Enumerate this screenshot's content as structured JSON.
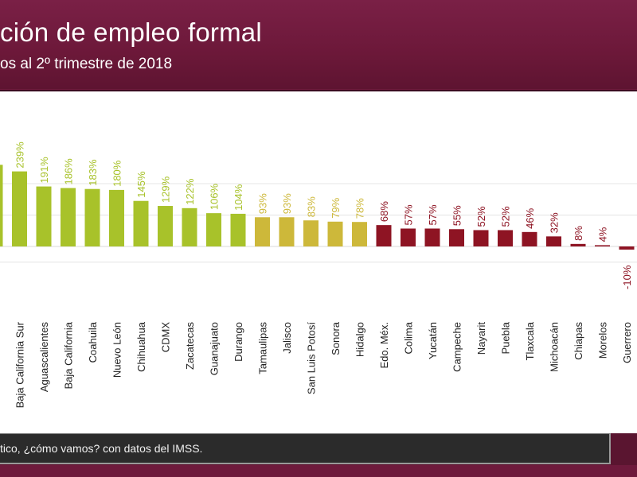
{
  "header": {
    "title": "ción de empleo formal",
    "subtitle": "os al 2º trimestre de 2018"
  },
  "footer": {
    "source": "tico, ¿cómo vamos? con datos del IMSS."
  },
  "colors": {
    "high": "#a8c22a",
    "mid": "#cdb83a",
    "low": "#8e1423",
    "header": "#6e1a3c"
  },
  "chart_data": {
    "type": "bar",
    "categories": [
      "",
      "Baja California Sur",
      "Aguascalientes",
      "Baja California",
      "Coahuila",
      "Nuevo León",
      "Chihuahua",
      "CDMX",
      "Zacatecas",
      "Guanajuato",
      "Durango",
      "Tamaulipas",
      "Jalisco",
      "San Luis Potosí",
      "Sonora",
      "Hidalgo",
      "Edo. Méx.",
      "Colima",
      "Yucatán",
      "Campeche",
      "Nayarit",
      "Puebla",
      "Tlaxcala",
      "Michoacán",
      "Chiapas",
      "Morelos",
      "Guerrero"
    ],
    "values": [
      260,
      239,
      191,
      186,
      183,
      180,
      145,
      129,
      122,
      106,
      104,
      93,
      93,
      83,
      79,
      78,
      68,
      57,
      57,
      55,
      52,
      52,
      46,
      32,
      8,
      4,
      -10
    ],
    "labels": [
      "",
      "239%",
      "191%",
      "186%",
      "183%",
      "180%",
      "145%",
      "129%",
      "122%",
      "106%",
      "104%",
      "93%",
      "93%",
      "83%",
      "79%",
      "78%",
      "68%",
      "57%",
      "57%",
      "55%",
      "52%",
      "52%",
      "46%",
      "32%",
      "8%",
      "4%",
      "-10%"
    ],
    "color_groups": [
      "high",
      "high",
      "high",
      "high",
      "high",
      "high",
      "high",
      "high",
      "high",
      "high",
      "high",
      "mid",
      "mid",
      "mid",
      "mid",
      "mid",
      "low",
      "low",
      "low",
      "low",
      "low",
      "low",
      "low",
      "low",
      "low",
      "low",
      "low"
    ],
    "ylim": [
      -35,
      300
    ],
    "gridlines": [
      -50,
      0,
      100,
      200
    ],
    "grid": true,
    "legend": "none"
  }
}
